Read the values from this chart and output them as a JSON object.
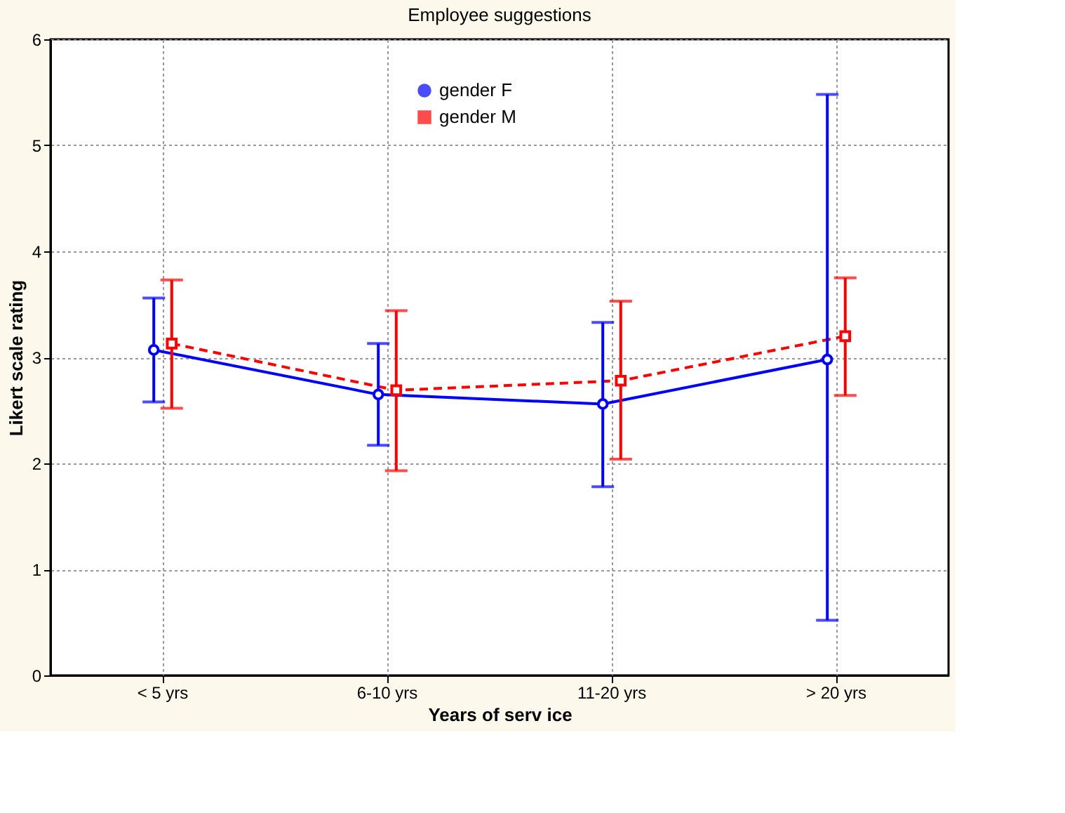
{
  "chart_data": {
    "type": "line",
    "title": "Employee suggestions",
    "xlabel": "Years of serv ice",
    "ylabel": "Likert scale rating",
    "categories": [
      "< 5 yrs",
      "6-10 yrs",
      "11-20 yrs",
      "> 20 yrs"
    ],
    "series": [
      {
        "name": "gender      F",
        "color": "#0000ff",
        "marker": "circle",
        "line_style": "solid",
        "values": [
          3.07,
          2.65,
          2.56,
          2.98
        ],
        "errors": [
          [
            2.58,
            3.56
          ],
          [
            2.17,
            3.13
          ],
          [
            1.78,
            3.33
          ],
          [
            0.52,
            5.48
          ]
        ]
      },
      {
        "name": "gender      M",
        "color": "#ff0000",
        "marker": "square",
        "line_style": "dashed",
        "values": [
          3.13,
          2.69,
          2.78,
          3.2
        ],
        "errors": [
          [
            2.52,
            3.73
          ],
          [
            1.93,
            3.44
          ],
          [
            2.04,
            3.53
          ],
          [
            2.64,
            3.75
          ]
        ]
      }
    ],
    "ylim": [
      0,
      6
    ],
    "yticks": [
      0,
      1,
      2,
      3,
      4,
      5,
      6
    ],
    "grid": true,
    "legend": "top"
  }
}
